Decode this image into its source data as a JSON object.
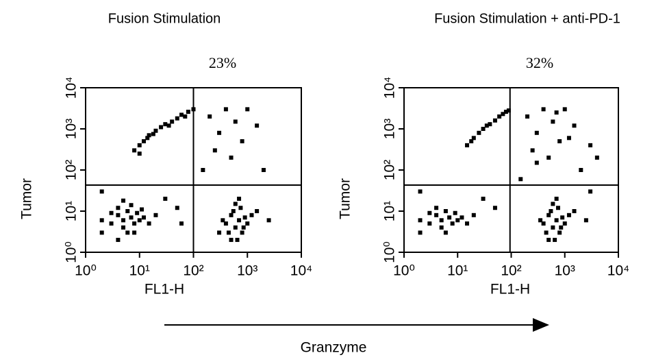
{
  "chart_data": [
    {
      "type": "scatter",
      "title": "Fusion   Stimulation",
      "annotation": "23%",
      "x_label": "FL1-H",
      "y_label": "Tumor",
      "log_scale": true,
      "xlim": [
        1,
        10000
      ],
      "ylim": [
        1,
        10000
      ],
      "xticks": [
        {
          "value": 1,
          "label": "10⁰"
        },
        {
          "value": 10,
          "label": "10¹"
        },
        {
          "value": 100,
          "label": "10²"
        },
        {
          "value": 1000,
          "label": "10³"
        },
        {
          "value": 10000,
          "label": "10⁴"
        }
      ],
      "yticks": [
        {
          "value": 1,
          "label": "10⁰"
        },
        {
          "value": 10,
          "label": "10¹"
        },
        {
          "value": 100,
          "label": "10²"
        },
        {
          "value": 1000,
          "label": "10³"
        },
        {
          "value": 10000,
          "label": "10⁴"
        }
      ],
      "quadrant_x": 100,
      "quadrant_y": 43,
      "series": [
        {
          "color": "#000000",
          "x": [
            3,
            4,
            5,
            6,
            7,
            8,
            5,
            4,
            9,
            10,
            6,
            3,
            12,
            7,
            2,
            15,
            5,
            8,
            11,
            4,
            20,
            2,
            400,
            500,
            600,
            700,
            800,
            550,
            650,
            900,
            450,
            750,
            1000,
            350,
            600,
            850,
            1200,
            300,
            500,
            700,
            1500,
            2500,
            8,
            10,
            12,
            15,
            20,
            25,
            30,
            40,
            50,
            60,
            80,
            10,
            14,
            18,
            35,
            70,
            100,
            200,
            400,
            600,
            300,
            800,
            1500,
            250,
            500,
            1000,
            2000,
            150,
            30,
            50,
            2,
            60
          ],
          "y": [
            5,
            8,
            6,
            10,
            7,
            5,
            4,
            12,
            9,
            6,
            3,
            9,
            7,
            14,
            6,
            5,
            18,
            3,
            11,
            2,
            8,
            3,
            5,
            8,
            4,
            6,
            3,
            10,
            2,
            7,
            3,
            12,
            5,
            6,
            15,
            4,
            8,
            3,
            2,
            20,
            10,
            6,
            300,
            400,
            500,
            700,
            900,
            1100,
            1300,
            1500,
            1800,
            2200,
            2600,
            250,
            600,
            750,
            1200,
            2000,
            3000,
            2000,
            3000,
            1500,
            800,
            500,
            1200,
            300,
            200,
            3000,
            100,
            100,
            20,
            12,
            30,
            5
          ]
        }
      ]
    },
    {
      "type": "scatter",
      "title": "Fusion Stimulation + anti-PD-1",
      "annotation": "32%",
      "x_label": "FL1-H",
      "y_label": "Tumor",
      "log_scale": true,
      "xlim": [
        1,
        10000
      ],
      "ylim": [
        1,
        10000
      ],
      "xticks": [
        {
          "value": 1,
          "label": "10⁰"
        },
        {
          "value": 10,
          "label": "10¹"
        },
        {
          "value": 100,
          "label": "10²"
        },
        {
          "value": 1000,
          "label": "10³"
        },
        {
          "value": 10000,
          "label": "10⁴"
        }
      ],
      "yticks": [
        {
          "value": 1,
          "label": "10⁰"
        },
        {
          "value": 10,
          "label": "10¹"
        },
        {
          "value": 100,
          "label": "10²"
        },
        {
          "value": 1000,
          "label": "10³"
        },
        {
          "value": 10000,
          "label": "10⁴"
        }
      ],
      "quadrant_x": 95,
      "quadrant_y": 43,
      "series": [
        {
          "color": "#000000",
          "x": [
            3,
            4,
            5,
            6,
            7,
            8,
            5,
            4,
            9,
            10,
            6,
            3,
            12,
            2,
            15,
            20,
            2,
            400,
            500,
            600,
            700,
            800,
            550,
            650,
            900,
            450,
            750,
            1000,
            350,
            600,
            850,
            1200,
            500,
            700,
            1500,
            2500,
            3000,
            15,
            20,
            25,
            30,
            40,
            50,
            60,
            80,
            18,
            35,
            70,
            90,
            200,
            400,
            600,
            300,
            800,
            1500,
            250,
            500,
            1000,
            2000,
            1200,
            3000,
            4000,
            700,
            300,
            150,
            30,
            50,
            2
          ],
          "y": [
            5,
            8,
            6,
            10,
            7,
            5,
            4,
            12,
            9,
            6,
            3,
            9,
            7,
            6,
            5,
            8,
            3,
            5,
            8,
            4,
            6,
            3,
            10,
            2,
            7,
            3,
            12,
            5,
            6,
            15,
            4,
            8,
            2,
            20,
            10,
            6,
            30,
            400,
            600,
            800,
            1000,
            1300,
            1600,
            2000,
            2600,
            500,
            1200,
            2300,
            2800,
            2000,
            3000,
            1500,
            800,
            500,
            1200,
            300,
            200,
            3000,
            100,
            600,
            400,
            200,
            2500,
            150,
            60,
            20,
            12,
            30
          ]
        }
      ]
    }
  ],
  "footer_label": "Granzyme"
}
